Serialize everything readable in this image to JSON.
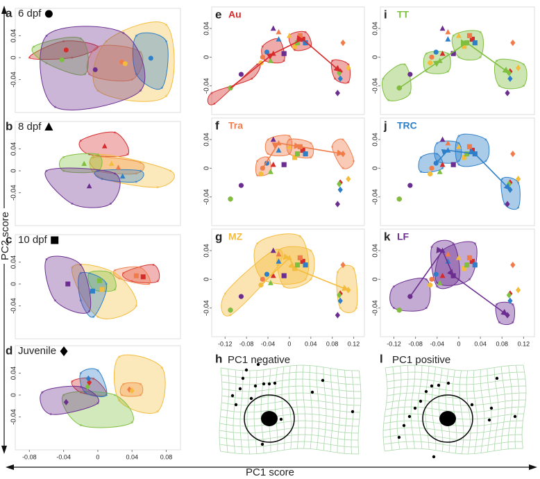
{
  "chart_data": {
    "type": "scatter",
    "y_label": "PC2 score",
    "x_label": "PC1 score",
    "left_axes": {
      "xlim": [
        -0.09,
        0.095
      ],
      "ylim": [
        -0.1,
        0.09
      ],
      "xticks": [
        -0.08,
        -0.04,
        0,
        0.04,
        0.08
      ],
      "yticks": [
        -0.04,
        0,
        0.04
      ]
    },
    "right_axes": {
      "xlim": [
        -0.145,
        0.14
      ],
      "ylim": [
        -0.08,
        0.07
      ],
      "xticks": [
        -0.12,
        -0.08,
        -0.04,
        0,
        0.04,
        0.08,
        0.12
      ],
      "yticks": [
        -0.04,
        0,
        0.04
      ]
    },
    "stages": [
      {
        "letter": "a",
        "label": "6 dpf",
        "symbol": "circle",
        "centroids": {
          "x": [
            -0.037,
            0.028,
            0.032,
            -0.042,
            0.062,
            -0.003
          ],
          "y": [
            0.014,
            -0.008,
            -0.011,
            -0.004,
            -0.001,
            -0.022
          ]
        },
        "hulls": [
          {
            "x": [
              -0.08,
              -0.04,
              0.0,
              -0.03
            ],
            "y": [
              0.0,
              0.03,
              0.02,
              0.0
            ]
          },
          {
            "x": [
              0.0,
              0.05,
              0.04,
              -0.01
            ],
            "y": [
              0.02,
              0.01,
              -0.04,
              -0.03
            ]
          },
          {
            "x": [
              0.01,
              0.08,
              0.08,
              0.0
            ],
            "y": [
              0.03,
              0.06,
              -0.07,
              -0.06
            ]
          },
          {
            "x": [
              -0.075,
              -0.02,
              -0.015,
              -0.06
            ],
            "y": [
              0.02,
              0.035,
              -0.03,
              -0.01
            ]
          },
          {
            "x": [
              0.045,
              0.08,
              0.075,
              0.045
            ],
            "y": [
              0.04,
              0.03,
              -0.055,
              -0.03
            ]
          },
          {
            "x": [
              -0.06,
              0.03,
              0.05,
              -0.05
            ],
            "y": [
              0.04,
              0.045,
              -0.06,
              -0.09
            ]
          }
        ]
      },
      {
        "letter": "b",
        "label": "8 dpf",
        "symbol": "triangle",
        "centroids": {
          "x": [
            0.008,
            0.024,
            0.016,
            -0.016,
            0.029,
            -0.01
          ],
          "y": [
            0.045,
            0.006,
            0.013,
            0.013,
            -0.01,
            -0.028
          ]
        },
        "hulls": [
          {
            "x": [
              -0.02,
              0.02,
              0.035,
              -0.01
            ],
            "y": [
              0.055,
              0.07,
              0.03,
              0.03
            ]
          },
          {
            "x": [
              -0.005,
              0.05,
              0.045,
              0.0
            ],
            "y": [
              0.025,
              0.015,
              -0.005,
              0.0
            ]
          },
          {
            "x": [
              0.0,
              0.085,
              0.07,
              0.0
            ],
            "y": [
              0.03,
              0.0,
              -0.03,
              -0.01
            ]
          },
          {
            "x": [
              -0.04,
              0.0,
              0.0,
              -0.04
            ],
            "y": [
              0.025,
              0.03,
              0.0,
              0.0
            ]
          },
          {
            "x": [
              0.0,
              0.05,
              0.045,
              0.005
            ],
            "y": [
              0.0,
              0.0,
              -0.02,
              -0.015
            ]
          },
          {
            "x": [
              -0.06,
              0.02,
              0.015,
              -0.03
            ],
            "y": [
              0.0,
              -0.005,
              -0.06,
              -0.06
            ]
          }
        ]
      },
      {
        "letter": "c",
        "label": "10 dpf",
        "symbol": "square",
        "centroids": {
          "x": [
            0.053,
            0.045,
            0.005,
            0.002,
            -0.006,
            -0.035
          ],
          "y": [
            0.013,
            0.015,
            -0.01,
            0.006,
            -0.013,
            0.0
          ]
        },
        "hulls": [
          {
            "x": [
              0.03,
              0.065,
              0.07,
              0.04
            ],
            "y": [
              0.02,
              0.035,
              0.005,
              0.005
            ]
          },
          {
            "x": [
              0.02,
              0.05,
              0.06,
              0.025
            ],
            "y": [
              0.025,
              0.03,
              0.0,
              0.01
            ]
          },
          {
            "x": [
              -0.03,
              0.02,
              0.045,
              0.0
            ],
            "y": [
              0.03,
              0.02,
              -0.04,
              -0.06
            ]
          },
          {
            "x": [
              -0.01,
              0.015,
              0.02,
              -0.005
            ],
            "y": [
              0.02,
              0.02,
              -0.01,
              -0.01
            ]
          },
          {
            "x": [
              -0.02,
              0.01,
              -0.005,
              -0.02
            ],
            "y": [
              0.02,
              0.0,
              -0.06,
              -0.03
            ]
          },
          {
            "x": [
              -0.06,
              -0.02,
              -0.01,
              -0.05
            ],
            "y": [
              0.045,
              0.035,
              -0.05,
              -0.03
            ]
          }
        ]
      },
      {
        "letter": "d",
        "label": "Juvenile",
        "symbol": "diamond",
        "centroids": {
          "x": [
            -0.01,
            0.037,
            0.04,
            -0.012,
            -0.011,
            -0.037
          ],
          "y": [
            0.023,
            0.01,
            0.008,
            0.015,
            0.03,
            -0.013
          ]
        },
        "hulls": [
          {
            "x": [
              -0.03,
              -0.005,
              0.01,
              -0.02
            ],
            "y": [
              0.025,
              0.03,
              0.0,
              0.005
            ]
          },
          {
            "x": [
              0.03,
              0.05,
              0.05,
              0.028
            ],
            "y": [
              0.02,
              0.02,
              0.0,
              0.0
            ]
          },
          {
            "x": [
              0.025,
              0.075,
              0.07,
              0.025
            ],
            "y": [
              0.07,
              0.05,
              -0.03,
              -0.01
            ]
          },
          {
            "x": [
              -0.04,
              0.02,
              0.04,
              -0.02
            ],
            "y": [
              0.0,
              0.0,
              -0.05,
              -0.055
            ]
          },
          {
            "x": [
              -0.02,
              0.0,
              0.01,
              -0.015
            ],
            "y": [
              0.04,
              0.045,
              0.0,
              0.005
            ]
          },
          {
            "x": [
              -0.065,
              -0.02,
              0.0,
              -0.055
            ],
            "y": [
              0.005,
              0.015,
              -0.015,
              -0.035
            ]
          }
        ]
      }
    ],
    "groups": [
      {
        "name": "Au",
        "letter": "e",
        "color": "#d62b2b",
        "hulls": [
          {
            "x": [
              -0.145,
              -0.07,
              -0.06,
              -0.14
            ],
            "y": [
              -0.05,
              -0.03,
              -0.01,
              -0.065
            ]
          },
          {
            "x": [
              -0.05,
              -0.02,
              -0.01,
              -0.045
            ],
            "y": [
              0.015,
              0.025,
              -0.005,
              -0.005
            ]
          },
          {
            "x": [
              0.0,
              0.03,
              0.04,
              0.01
            ],
            "y": [
              0.03,
              0.035,
              0.015,
              0.01
            ]
          },
          {
            "x": [
              0.08,
              0.11,
              0.11,
              0.085
            ],
            "y": [
              -0.005,
              -0.01,
              -0.035,
              -0.03
            ]
          }
        ]
      },
      {
        "name": "Tra",
        "letter": "f",
        "color": "#f07c4a",
        "hulls": [
          {
            "x": [
              -0.06,
              -0.04,
              -0.035,
              -0.06
            ],
            "y": [
              0.01,
              0.015,
              -0.005,
              -0.01
            ]
          },
          {
            "x": [
              -0.04,
              0.0,
              0.0,
              -0.04
            ],
            "y": [
              0.04,
              0.045,
              0.02,
              0.02
            ]
          },
          {
            "x": [
              0.0,
              0.04,
              0.04,
              0.0
            ],
            "y": [
              0.04,
              0.035,
              0.015,
              0.02
            ]
          },
          {
            "x": [
              0.08,
              0.1,
              0.12,
              0.1
            ],
            "y": [
              0.03,
              0.04,
              0.01,
              0.0
            ]
          }
        ]
      },
      {
        "name": "MZ",
        "letter": "g",
        "color": "#f4bc3c",
        "hulls": [
          {
            "x": [
              -0.12,
              -0.03,
              -0.02,
              -0.11
            ],
            "y": [
              -0.02,
              0.04,
              0.02,
              -0.05
            ]
          },
          {
            "x": [
              -0.06,
              0.02,
              0.03,
              -0.05
            ],
            "y": [
              0.05,
              0.06,
              0.0,
              0.0
            ]
          },
          {
            "x": [
              -0.02,
              0.04,
              0.04,
              -0.01
            ],
            "y": [
              0.04,
              0.04,
              0.0,
              -0.01
            ]
          },
          {
            "x": [
              0.09,
              0.12,
              0.125,
              0.095
            ],
            "y": [
              0.01,
              0.015,
              -0.04,
              -0.04
            ]
          }
        ]
      },
      {
        "name": "TT",
        "letter": "i",
        "color": "#7fbf3f",
        "hulls": [
          {
            "x": [
              -0.14,
              -0.1,
              -0.09,
              -0.13
            ],
            "y": [
              -0.03,
              -0.01,
              -0.05,
              -0.06
            ]
          },
          {
            "x": [
              -0.06,
              -0.02,
              -0.02,
              -0.06
            ],
            "y": [
              0.005,
              0.005,
              -0.02,
              -0.02
            ]
          },
          {
            "x": [
              -0.01,
              0.04,
              0.04,
              0.0
            ],
            "y": [
              0.03,
              0.035,
              0.0,
              0.0
            ]
          },
          {
            "x": [
              0.07,
              0.12,
              0.12,
              0.075
            ],
            "y": [
              -0.005,
              -0.01,
              -0.04,
              -0.04
            ]
          }
        ]
      },
      {
        "name": "TRC",
        "letter": "j",
        "color": "#2e7fc9",
        "hulls": [
          {
            "x": [
              -0.07,
              -0.04,
              -0.03,
              -0.07
            ],
            "y": [
              0.015,
              0.02,
              0.0,
              -0.005
            ]
          },
          {
            "x": [
              -0.04,
              0.0,
              0.0,
              -0.04
            ],
            "y": [
              0.035,
              0.035,
              0.01,
              0.01
            ]
          },
          {
            "x": [
              0.0,
              0.05,
              0.05,
              0.0
            ],
            "y": [
              0.045,
              0.04,
              0.01,
              0.005
            ]
          },
          {
            "x": [
              0.08,
              0.11,
              0.11,
              0.085
            ],
            "y": [
              -0.015,
              -0.02,
              -0.055,
              -0.05
            ]
          }
        ]
      },
      {
        "name": "LF",
        "letter": "k",
        "color": "#6b2e90",
        "hulls": [
          {
            "x": [
              -0.12,
              -0.06,
              -0.06,
              -0.12
            ],
            "y": [
              -0.01,
              0.0,
              -0.04,
              -0.04
            ]
          },
          {
            "x": [
              -0.05,
              -0.01,
              0.0,
              -0.04
            ],
            "y": [
              0.045,
              0.05,
              0.0,
              -0.01
            ]
          },
          {
            "x": [
              -0.03,
              0.03,
              0.02,
              -0.04
            ],
            "y": [
              0.04,
              0.05,
              0.0,
              -0.005
            ]
          },
          {
            "x": [
              0.07,
              0.1,
              0.1,
              0.075
            ],
            "y": [
              -0.035,
              -0.035,
              -0.06,
              -0.06
            ]
          }
        ]
      }
    ],
    "trajectory": [
      {
        "x": [
          -0.11,
          -0.05,
          -0.053,
          -0.11,
          -0.042,
          -0.09
        ],
        "y": [
          -0.043,
          0.0,
          -0.008,
          -0.043,
          0.007,
          -0.024
        ]
      },
      {
        "x": [
          -0.03,
          -0.02,
          0.0,
          -0.035,
          -0.02,
          -0.03
        ],
        "y": [
          0.005,
          0.035,
          0.03,
          -0.005,
          0.025,
          0.04
        ]
      },
      {
        "x": [
          0.025,
          0.02,
          0.01,
          0.015,
          0.03,
          -0.01
        ],
        "y": [
          0.025,
          0.03,
          0.015,
          0.02,
          0.02,
          0.005
        ]
      },
      {
        "x": [
          0.095,
          0.1,
          0.11,
          0.093,
          0.095,
          0.09
        ],
        "y": [
          -0.02,
          0.02,
          -0.015,
          -0.022,
          -0.03,
          -0.05
        ]
      }
    ],
    "shape_panels": [
      {
        "letter": "h",
        "title": "PC1 negative"
      },
      {
        "letter": "l",
        "title": "PC1 positive"
      }
    ]
  }
}
